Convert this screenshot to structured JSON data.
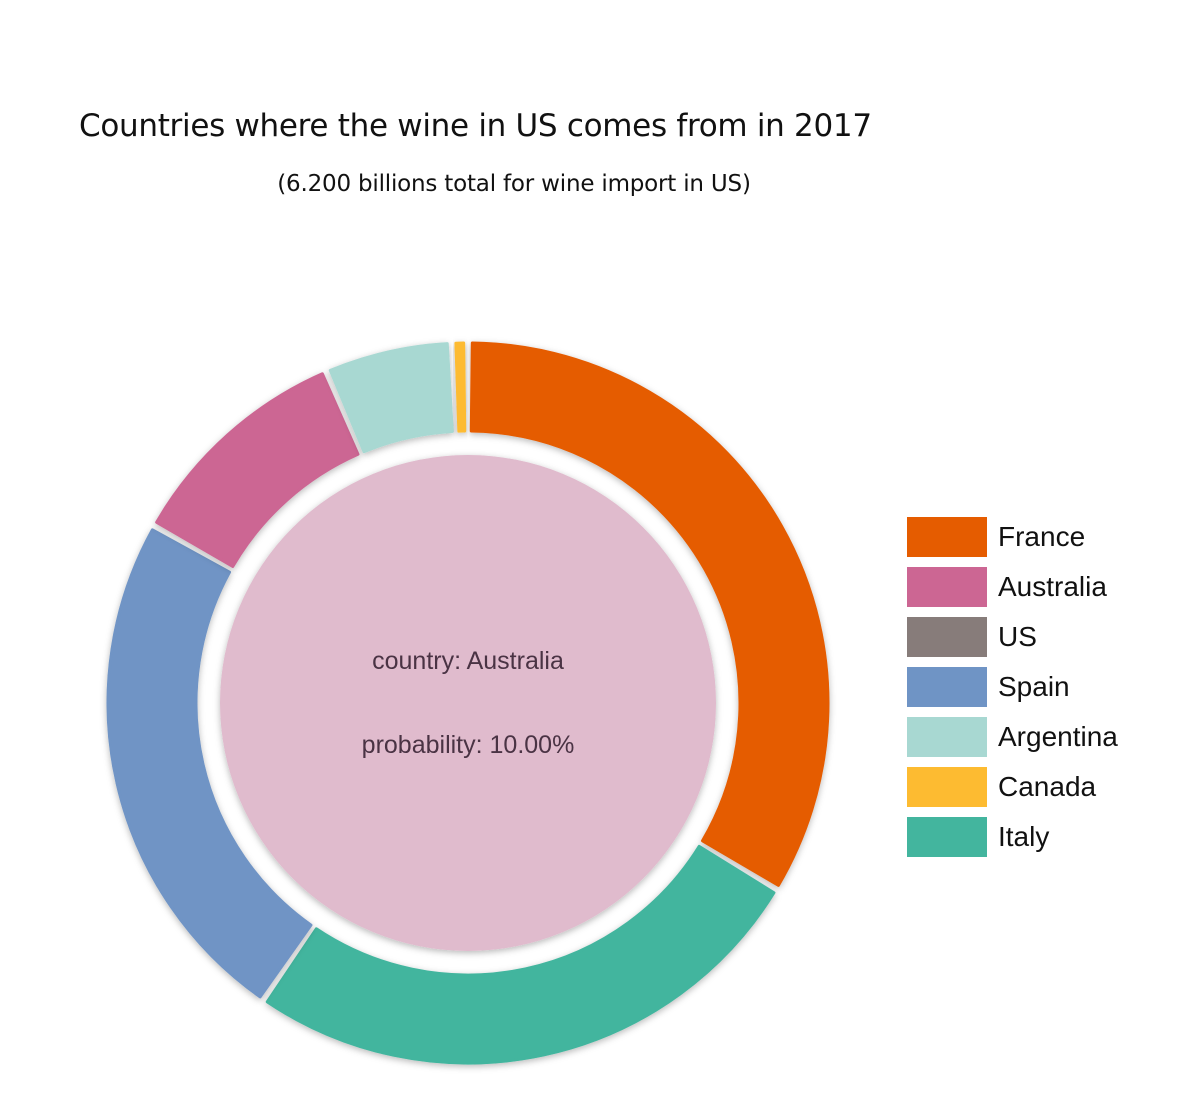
{
  "chart_data": {
    "type": "pie",
    "title": "Countries where the wine in US comes from in 2017",
    "subtitle": "(6.200 billions total for wine import in US)",
    "categories": [
      "France",
      "Italy",
      "Spain",
      "Australia",
      "Argentina",
      "Canada"
    ],
    "values": [
      32.4,
      25.0,
      22.7,
      10.0,
      5.5,
      0.7
    ],
    "colors": [
      "#e55c00",
      "#43b59e",
      "#6f94c5",
      "#cc6693",
      "#a8d8d2",
      "#fdbb31"
    ],
    "legend": [
      {
        "label": "France",
        "color": "#e55c00"
      },
      {
        "label": "Australia",
        "color": "#cc6693"
      },
      {
        "label": "US",
        "color": "#877c7a"
      },
      {
        "label": "Spain",
        "color": "#6f94c5"
      },
      {
        "label": "Argentina",
        "color": "#a8d8d2"
      },
      {
        "label": "Canada",
        "color": "#fdbb31"
      },
      {
        "label": "Italy",
        "color": "#43b59e"
      }
    ],
    "legend_position": "right",
    "tooltip": {
      "country_line": "country: Australia",
      "probability_line": "probability: 10.00%",
      "fill_color": "#e0bbcd"
    }
  }
}
